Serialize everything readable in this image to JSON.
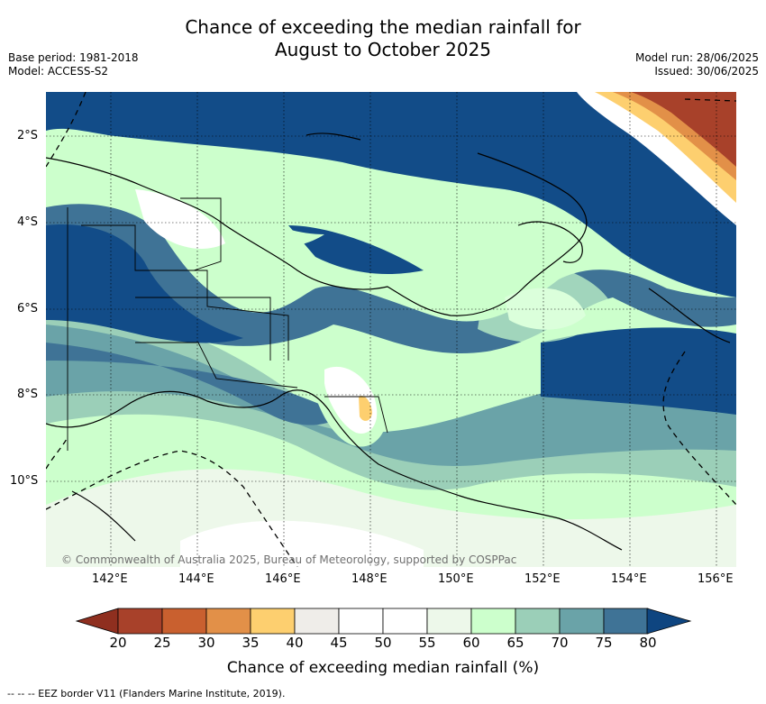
{
  "header": {
    "title_line1": "Chance of exceeding the median rainfall for",
    "title_line2": "August to October 2025",
    "base_period": "Base period: 1981-2018",
    "model": "Model: ACCESS-S2",
    "model_run": "Model run: 28/06/2025",
    "issued": "Issued: 30/06/2025"
  },
  "map": {
    "lat_labels": [
      "2°S",
      "4°S",
      "6°S",
      "8°S",
      "10°S"
    ],
    "lon_labels": [
      "142°E",
      "144°E",
      "146°E",
      "148°E",
      "150°E",
      "152°E",
      "154°E",
      "156°E"
    ],
    "copyright": "© Commonwealth of Australia 2025, Bureau of Meteorology, supported by COSPPac"
  },
  "colorbar": {
    "ticks": [
      "20",
      "25",
      "30",
      "35",
      "40",
      "45",
      "50",
      "55",
      "60",
      "65",
      "70",
      "75",
      "80"
    ],
    "colors": [
      "#a8412a",
      "#c9602f",
      "#e29048",
      "#fdcf6f",
      "#efede9",
      "#ffffff",
      "#ffffff",
      "#edf8ea",
      "#ccffcc",
      "#9bcfb8",
      "#6aa3a8",
      "#3f7396",
      "#124c88"
    ],
    "low_color": "#8f2f1f",
    "high_color": "#0e4580",
    "title": "Chance of exceeding median rainfall (%)"
  },
  "footnote": "--  --  -- EEZ border V11 (Flanders Marine Institute, 2019)."
}
